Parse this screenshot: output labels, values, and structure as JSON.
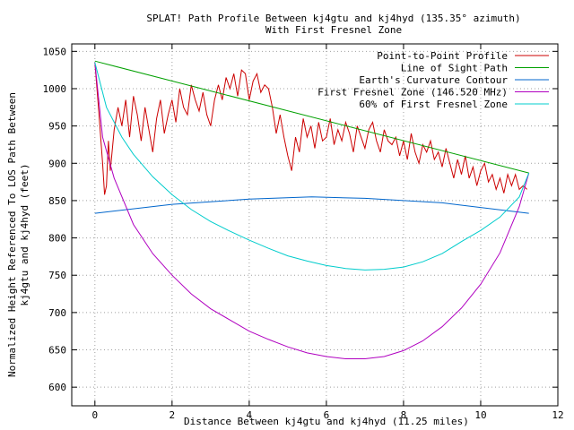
{
  "chart_data": {
    "type": "line",
    "title": "SPLAT! Path Profile Between kj4gtu and kj4hyd (135.35° azimuth)",
    "subtitle": "With First Fresnel Zone",
    "xlabel": "Distance Between kj4gtu and kj4hyd (11.25 miles)",
    "ylabel_line1": "Normalized Height Referenced To LOS Path Between",
    "ylabel_line2": "kj4gtu and kj4hyd (feet)",
    "xlim": [
      -0.6,
      12
    ],
    "ylim": [
      575,
      1060
    ],
    "xticks": [
      0,
      2,
      4,
      6,
      8,
      10,
      12
    ],
    "yticks": [
      600,
      650,
      700,
      750,
      800,
      850,
      900,
      950,
      1000,
      1050
    ],
    "grid": true,
    "legend_position": "top-right",
    "series": [
      {
        "name": "Point-to-Point Profile",
        "color": "#cc0000",
        "x": [
          0.0,
          0.1,
          0.2,
          0.25,
          0.3,
          0.35,
          0.4,
          0.5,
          0.6,
          0.7,
          0.8,
          0.9,
          1.0,
          1.1,
          1.2,
          1.3,
          1.4,
          1.5,
          1.6,
          1.7,
          1.8,
          1.9,
          2.0,
          2.1,
          2.2,
          2.3,
          2.4,
          2.5,
          2.6,
          2.7,
          2.8,
          2.9,
          3.0,
          3.1,
          3.2,
          3.3,
          3.4,
          3.5,
          3.6,
          3.7,
          3.8,
          3.9,
          4.0,
          4.1,
          4.2,
          4.3,
          4.4,
          4.5,
          4.6,
          4.7,
          4.8,
          4.9,
          5.0,
          5.1,
          5.2,
          5.3,
          5.4,
          5.5,
          5.6,
          5.7,
          5.8,
          5.9,
          6.0,
          6.1,
          6.2,
          6.3,
          6.4,
          6.5,
          6.6,
          6.7,
          6.8,
          6.9,
          7.0,
          7.1,
          7.2,
          7.3,
          7.4,
          7.5,
          7.6,
          7.7,
          7.8,
          7.9,
          8.0,
          8.1,
          8.2,
          8.3,
          8.4,
          8.5,
          8.6,
          8.7,
          8.8,
          8.9,
          9.0,
          9.1,
          9.2,
          9.3,
          9.4,
          9.5,
          9.6,
          9.7,
          9.8,
          9.9,
          10.0,
          10.1,
          10.2,
          10.3,
          10.4,
          10.5,
          10.6,
          10.7,
          10.8,
          10.9,
          11.0,
          11.1,
          11.2
        ],
        "y": [
          1035,
          970,
          900,
          858,
          870,
          930,
          890,
          945,
          975,
          950,
          985,
          935,
          990,
          965,
          930,
          975,
          945,
          915,
          960,
          985,
          940,
          965,
          985,
          955,
          1000,
          975,
          965,
          1005,
          985,
          970,
          995,
          965,
          950,
          985,
          1005,
          985,
          1015,
          1000,
          1020,
          990,
          1025,
          1020,
          985,
          1010,
          1020,
          995,
          1005,
          1000,
          975,
          940,
          965,
          935,
          910,
          890,
          935,
          915,
          960,
          935,
          950,
          920,
          955,
          930,
          935,
          960,
          925,
          945,
          930,
          955,
          940,
          915,
          950,
          935,
          920,
          945,
          955,
          930,
          915,
          945,
          930,
          925,
          935,
          910,
          930,
          905,
          940,
          915,
          900,
          925,
          915,
          930,
          905,
          915,
          895,
          920,
          900,
          880,
          905,
          885,
          910,
          880,
          895,
          870,
          890,
          900,
          875,
          885,
          865,
          880,
          860,
          885,
          870,
          885,
          865,
          870,
          865
        ]
      },
      {
        "name": "Line of Sight Path",
        "color": "#00a000",
        "x": [
          0,
          11.25
        ],
        "y": [
          1037,
          887
        ]
      },
      {
        "name": "Earth's Curvature Contour",
        "color": "#0066cc",
        "x": [
          0,
          2,
          4,
          5.62,
          7,
          9,
          11.25
        ],
        "y": [
          833,
          845,
          852,
          855,
          853,
          847,
          833
        ]
      },
      {
        "name": "First Fresnel Zone (146.520 MHz)",
        "color": "#b000c0",
        "x": [
          0,
          0.2,
          0.5,
          1.0,
          1.5,
          2.0,
          2.5,
          3.0,
          3.5,
          4.0,
          4.5,
          5.0,
          5.5,
          6.0,
          6.5,
          7.0,
          7.5,
          8.0,
          8.5,
          9.0,
          9.5,
          10.0,
          10.5,
          11.0,
          11.25
        ],
        "y": [
          1035,
          935,
          880,
          818,
          779,
          750,
          725,
          705,
          690,
          675,
          664,
          654,
          646,
          641,
          638,
          638,
          641,
          649,
          662,
          681,
          706,
          738,
          780,
          842,
          887
        ]
      },
      {
        "name": "60% of First Fresnel Zone",
        "color": "#00cccc",
        "x": [
          0,
          0.3,
          0.7,
          1.0,
          1.5,
          2.0,
          2.5,
          3.0,
          3.5,
          4.0,
          4.5,
          5.0,
          5.5,
          6.0,
          6.5,
          7.0,
          7.5,
          8.0,
          8.5,
          9.0,
          9.5,
          10.0,
          10.5,
          11.0,
          11.25
        ],
        "y": [
          1035,
          975,
          935,
          912,
          882,
          858,
          838,
          822,
          809,
          797,
          786,
          776,
          769,
          763,
          759,
          757,
          758,
          761,
          768,
          779,
          795,
          810,
          828,
          855,
          887
        ]
      }
    ]
  }
}
